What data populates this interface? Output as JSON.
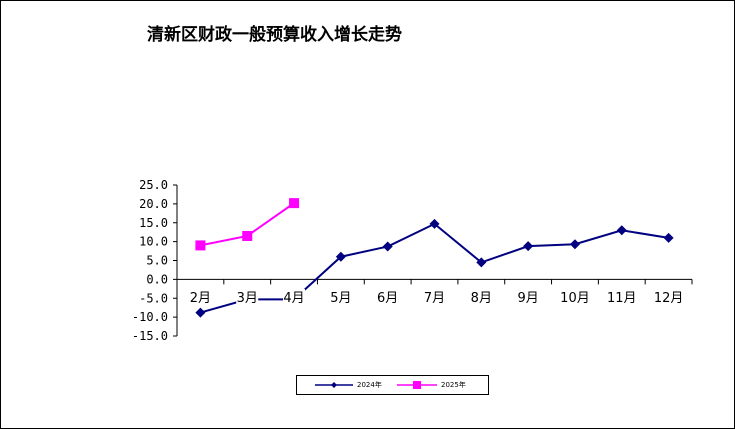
{
  "chart_data": {
    "type": "line",
    "title": "清新区财政一般预算收入增长走势",
    "categories": [
      "2月",
      "3月",
      "4月",
      "5月",
      "6月",
      "7月",
      "8月",
      "9月",
      "10月",
      "11月",
      "12月"
    ],
    "ylim": [
      -15.0,
      25.0
    ],
    "yticks": [
      "25.0",
      "20.0",
      "15.0",
      "10.0",
      "5.0",
      "0.0",
      "-5.0",
      "-10.0",
      "-15.0"
    ],
    "grid": false,
    "legend_position": "bottom",
    "series": [
      {
        "name": "2024年",
        "color": "#000080",
        "marker": "diamond",
        "values": [
          -8.8,
          -5.3,
          -5.3,
          6.0,
          8.7,
          14.7,
          4.5,
          8.8,
          9.3,
          13.0,
          11.0
        ]
      },
      {
        "name": "2025年",
        "color": "#FF00FF",
        "marker": "square",
        "values": [
          9.0,
          11.5,
          20.2,
          null,
          null,
          null,
          null,
          null,
          null,
          null,
          null
        ]
      }
    ]
  }
}
